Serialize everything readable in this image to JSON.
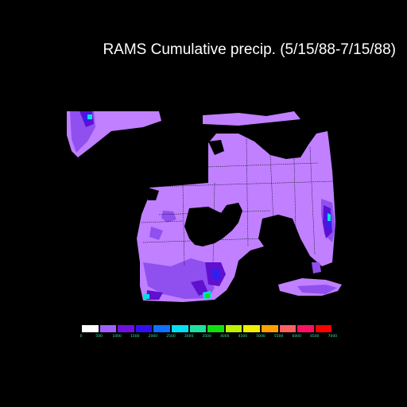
{
  "title": "RAMS Cumulative precip. (5/15/88-7/15/88)",
  "legend": {
    "colors": [
      "#ffffff",
      "#a060ff",
      "#7010e0",
      "#3010f0",
      "#1070ff",
      "#00e0f0",
      "#20e0a0",
      "#10e010",
      "#c0f000",
      "#f0f000",
      "#ffa000",
      "#ff6060",
      "#ff1060",
      "#ff0000"
    ],
    "labels": [
      "0",
      "500",
      "1000",
      "1500",
      "2000",
      "2500",
      "3000",
      "3500",
      "4000",
      "4500",
      "5000",
      "5500",
      "6000",
      "6500",
      "7000"
    ]
  },
  "colors": {
    "background": "#000000",
    "land_base": "#c080ff",
    "land_mid": "#9050f0",
    "land_dark": "#6010d0",
    "high_blue": "#3020f0",
    "high_cyan": "#00e0e0",
    "high_green": "#10e010",
    "borders": "#000000"
  }
}
